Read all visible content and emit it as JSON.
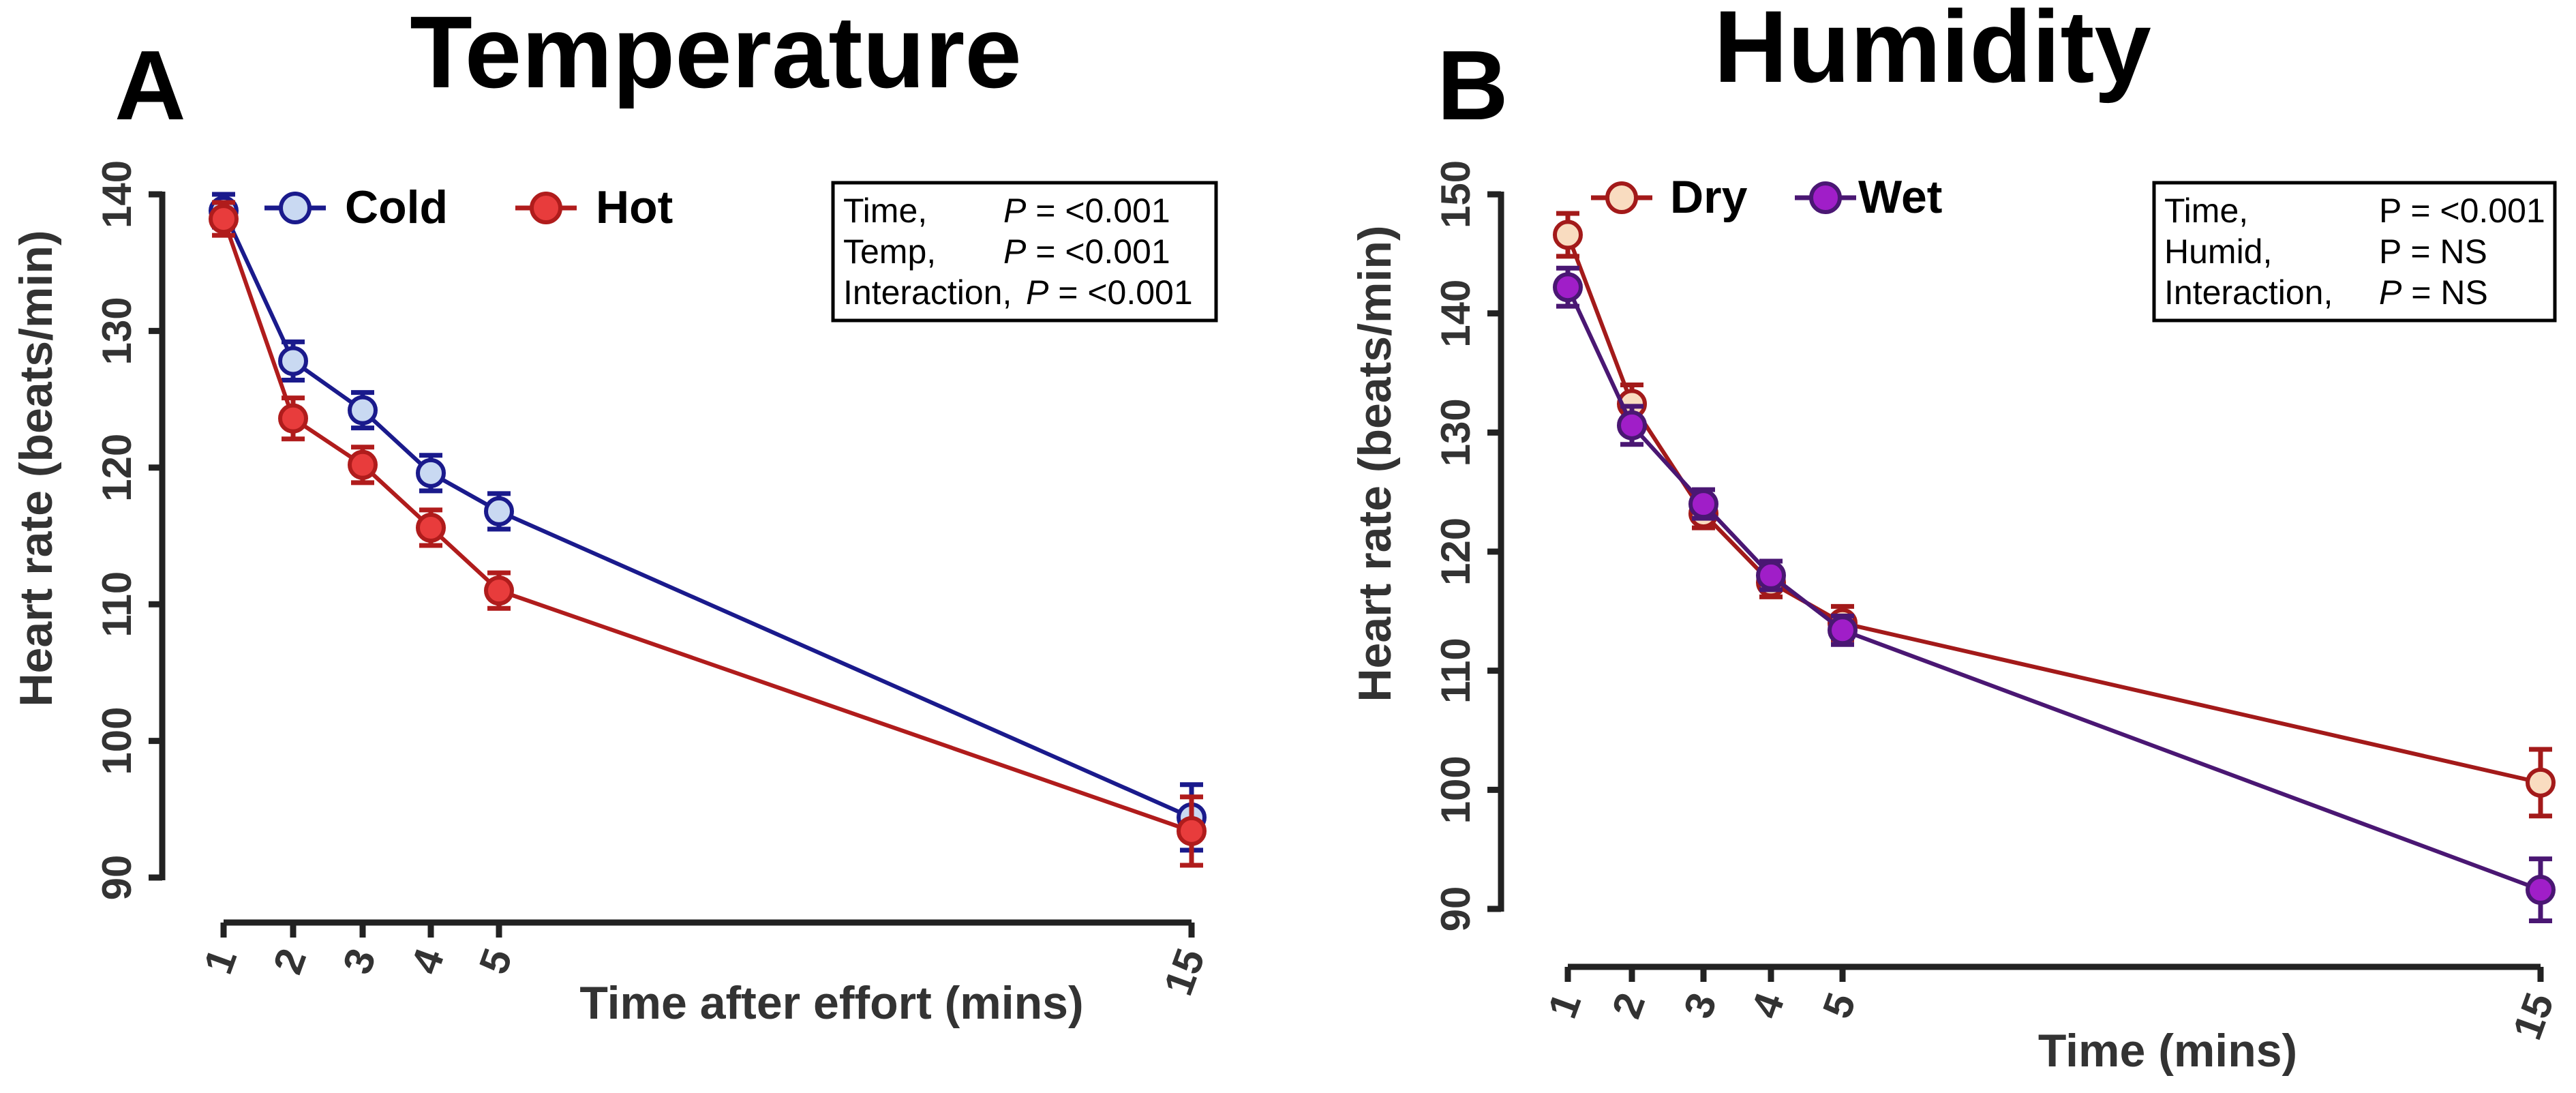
{
  "chart_data": [
    {
      "type": "line",
      "panel_letter": "A",
      "title": "Temperature",
      "xlabel": "Time after effort (mins)",
      "ylabel": "Heart rate (beats/min)",
      "x": [
        1,
        2,
        3,
        4,
        5,
        15
      ],
      "x_tick_labels": [
        "1",
        "2",
        "3",
        "4",
        "5",
        "15"
      ],
      "ylim": [
        90,
        140
      ],
      "y_ticks": [
        90,
        100,
        110,
        120,
        130,
        140
      ],
      "grid": false,
      "legend_position": "top-left",
      "series": [
        {
          "name": "Cold",
          "values": [
            138.8,
            127.8,
            124.2,
            119.6,
            116.8,
            94.4
          ],
          "errors": [
            1.2,
            1.4,
            1.3,
            1.3,
            1.3,
            2.4
          ],
          "line_color": "#1a1a8c",
          "marker_fill": "#c9d9f2"
        },
        {
          "name": "Hot",
          "values": [
            138.2,
            123.6,
            120.2,
            115.6,
            111.0,
            93.4
          ],
          "errors": [
            1.2,
            1.5,
            1.3,
            1.3,
            1.3,
            2.5
          ],
          "line_color": "#b01c1c",
          "marker_fill": "#e83c3c"
        }
      ],
      "stats_box": [
        {
          "term": "Time,",
          "p_symbol": "P",
          "rest": " = <0.001"
        },
        {
          "term": "Temp,",
          "p_symbol": "P",
          "rest": " = <0.001"
        },
        {
          "term": "Interaction,",
          "p_symbol": "P",
          "rest": " = <0.001"
        }
      ]
    },
    {
      "type": "line",
      "panel_letter": "B",
      "title": "Humidity",
      "xlabel": "Time (mins)",
      "ylabel": "Heart rate (beats/min)",
      "x": [
        1,
        2,
        3,
        4,
        5,
        15
      ],
      "x_tick_labels": [
        "1",
        "2",
        "3",
        "4",
        "5",
        "15"
      ],
      "ylim": [
        90,
        150
      ],
      "y_ticks": [
        90,
        100,
        110,
        120,
        130,
        140,
        150
      ],
      "grid": false,
      "legend_position": "top-left",
      "series": [
        {
          "name": "Dry",
          "values": [
            146.6,
            132.4,
            123.2,
            117.4,
            114.0,
            100.6
          ],
          "errors": [
            1.8,
            1.6,
            1.2,
            1.2,
            1.4,
            2.8
          ],
          "line_color": "#a31a1a",
          "marker_fill": "#f9dcc0"
        },
        {
          "name": "Wet",
          "values": [
            142.2,
            130.6,
            124.0,
            118.0,
            113.4,
            91.6
          ],
          "errors": [
            1.6,
            1.6,
            1.2,
            1.2,
            1.2,
            2.6
          ],
          "line_color": "#4a1773",
          "marker_fill": "#a01ec8"
        }
      ],
      "stats_box": [
        {
          "term": "Time,",
          "p_symbol": "",
          "rest": "P = <0.001"
        },
        {
          "term": "Humid,",
          "p_symbol": "",
          "rest": "P = NS"
        },
        {
          "term": "Interaction,",
          "p_symbol": "P",
          "rest": " = NS"
        }
      ]
    }
  ]
}
